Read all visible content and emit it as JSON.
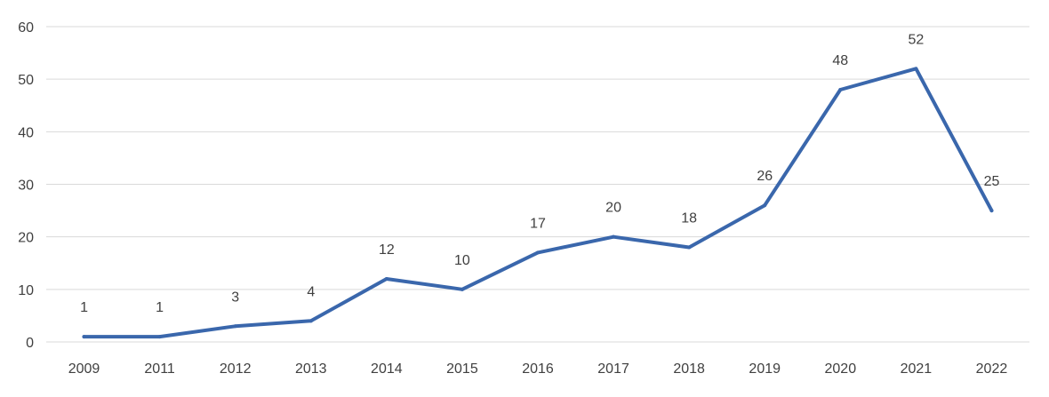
{
  "chart_data": {
    "type": "line",
    "categories": [
      "2009",
      "2011",
      "2012",
      "2013",
      "2014",
      "2015",
      "2016",
      "2017",
      "2018",
      "2019",
      "2020",
      "2021",
      "2022"
    ],
    "series": [
      {
        "values": [
          1,
          1,
          3,
          4,
          12,
          10,
          17,
          20,
          18,
          26,
          48,
          52,
          25
        ]
      }
    ],
    "data_labels": [
      "1",
      "1",
      "3",
      "4",
      "12",
      "10",
      "17",
      "20",
      "18",
      "26",
      "48",
      "52",
      "25"
    ],
    "y_ticks": [
      "0",
      "10",
      "20",
      "30",
      "40",
      "50",
      "60"
    ],
    "ylim": [
      0,
      60
    ],
    "title": "",
    "xlabel": "",
    "ylabel": "",
    "grid": true,
    "legend": "none",
    "colors": {
      "series": "#3a67ac",
      "grid": "#d9d9d9",
      "text": "#404040"
    }
  }
}
